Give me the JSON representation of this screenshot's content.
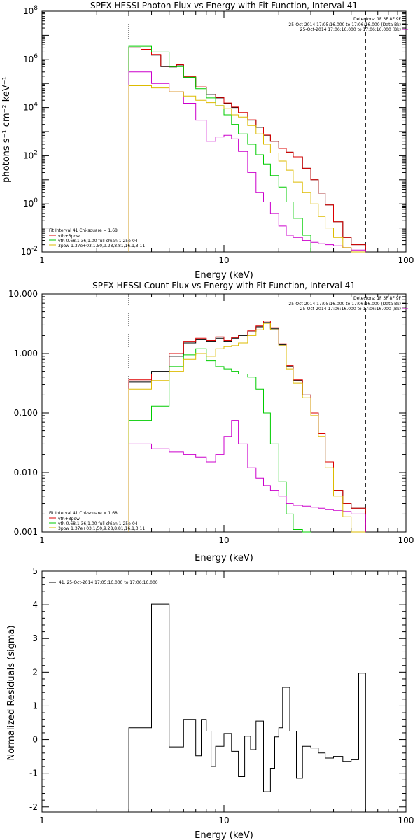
{
  "chart_data": [
    {
      "type": "line",
      "title": "SPEX HESSI Photon Flux vs Energy with Fit Function, Interval 41",
      "xlabel": "Energy (keV)",
      "ylabel": "photons s⁻¹ cm⁻² keV⁻¹",
      "xscale": "log",
      "yscale": "log",
      "xlim": [
        1,
        100
      ],
      "ylim": [
        0.01,
        100000000
      ],
      "xticks": [
        {
          "v": 1,
          "label": "1"
        },
        {
          "v": 10,
          "label": "10"
        },
        {
          "v": 100,
          "label": "100"
        }
      ],
      "yticks": [
        {
          "v": 0.01,
          "base": "10",
          "exp": "-2"
        },
        {
          "v": 1,
          "base": "10",
          "exp": "0"
        },
        {
          "v": 100,
          "base": "10",
          "exp": "2"
        },
        {
          "v": 10000,
          "base": "10",
          "exp": "4"
        },
        {
          "v": 1000000,
          "base": "10",
          "exp": "6"
        },
        {
          "v": 100000000,
          "base": "10",
          "exp": "8"
        }
      ],
      "vlines": [
        {
          "x": 3,
          "style": "dotted"
        },
        {
          "x": 60,
          "style": "dashed"
        }
      ],
      "info_top": [
        "Detectors: 1F 3F 8F 9F",
        "25-Oct-2014 17:05:16.000 to 17:06:16.000 (Data-Bk)",
        "25-Oct-2014 17:06:16.000 to 17:06:16.000 (Bk)"
      ],
      "info_colors": [
        "#000000",
        "#cc00cc"
      ],
      "fit_lines": [
        "Fit Interval 41   Chi-square = 1.68",
        "vth+3pow",
        "vth 0.68,1.36,1.00   full chian 1.25e-04",
        "3pow 1.37e+03,1.50,9.28,8.81,16.1,3.11"
      ],
      "fit_colors": [
        "",
        "#dd0000",
        "#00cc00",
        "#ddbb00"
      ],
      "series": [
        {
          "color": "#000000",
          "edges": [
            3,
            3.5,
            4,
            4.5,
            5,
            5.5,
            6,
            7,
            8,
            9,
            10,
            11,
            12,
            13.5,
            15,
            16.5,
            18,
            20,
            22,
            24,
            27,
            30,
            33,
            36,
            40,
            45,
            50,
            60
          ],
          "values": [
            3000000,
            2500000,
            1500000,
            500000,
            480000,
            580000,
            180000,
            70000,
            35000,
            25000,
            15000,
            10000,
            6000,
            3000,
            1500,
            700,
            400,
            200,
            140,
            90,
            30,
            10,
            2.8,
            0.9,
            0.18,
            0.04,
            0.02
          ]
        },
        {
          "color": "#dd0000",
          "edges": [
            3,
            3.5,
            4,
            4.5,
            5,
            5.5,
            6,
            7,
            8,
            9,
            10,
            11,
            12,
            13.5,
            15,
            16.5,
            18,
            20,
            22,
            24,
            27,
            30,
            33,
            36,
            40,
            45,
            50,
            60
          ],
          "values": [
            3000000,
            2600000,
            1600000,
            520000,
            500000,
            600000,
            190000,
            72000,
            36000,
            26000,
            15500,
            10500,
            6200,
            3100,
            1550,
            720,
            400,
            200,
            140,
            90,
            30,
            10,
            2.8,
            0.9,
            0.18,
            0.04,
            0.02
          ]
        },
        {
          "color": "#00cc00",
          "edges": [
            3,
            4,
            5,
            6,
            7,
            8,
            9,
            10,
            11,
            12,
            13.5,
            15,
            16.5,
            18,
            20,
            22,
            24,
            27,
            30
          ],
          "values": [
            3500000,
            2000000,
            500000,
            180000,
            60000,
            25000,
            12000,
            5000,
            2000,
            800,
            300,
            110,
            45,
            15,
            5,
            1.2,
            0.25,
            0.05
          ]
        },
        {
          "color": "#cc00cc",
          "edges": [
            3,
            4,
            5,
            6,
            7,
            8,
            9,
            10,
            11,
            12,
            13.5,
            15,
            16.5,
            18,
            20,
            22,
            24,
            27,
            30,
            33,
            36,
            40,
            45,
            50,
            60
          ],
          "values": [
            300000,
            100000,
            45000,
            15000,
            3000,
            400,
            600,
            700,
            500,
            150,
            20,
            3,
            1.2,
            0.4,
            0.12,
            0.05,
            0.04,
            0.03,
            0.025,
            0.022,
            0.02,
            0.018,
            0.015,
            0.012
          ]
        },
        {
          "color": "#ddbb00",
          "edges": [
            3,
            4,
            5,
            6,
            7,
            8,
            9,
            10,
            11,
            12,
            13.5,
            15,
            16.5,
            18,
            20,
            22,
            24,
            27,
            30,
            33,
            36,
            40,
            45,
            50,
            60
          ],
          "values": [
            80000,
            65000,
            45000,
            30000,
            20000,
            16000,
            12000,
            9000,
            5000,
            4000,
            1800,
            800,
            300,
            130,
            60,
            25,
            8,
            3,
            1,
            0.3,
            0.1,
            0.04,
            0.015,
            0.01
          ]
        }
      ]
    },
    {
      "type": "line",
      "title": "SPEX HESSI Count Flux vs Energy with Fit Function, Interval 41",
      "xlabel": "Energy (keV)",
      "ylabel": "",
      "xscale": "log",
      "yscale": "log",
      "xlim": [
        1,
        100
      ],
      "ylim": [
        0.001,
        10
      ],
      "xticks": [
        {
          "v": 1,
          "label": "1"
        },
        {
          "v": 10,
          "label": "10"
        },
        {
          "v": 100,
          "label": "100"
        }
      ],
      "yticks": [
        {
          "v": 0.001,
          "label": "0.001"
        },
        {
          "v": 0.01,
          "label": "0.010"
        },
        {
          "v": 0.1,
          "label": "0.100"
        },
        {
          "v": 1,
          "label": "1.000"
        },
        {
          "v": 10,
          "label": "10.000"
        }
      ],
      "vlines": [
        {
          "x": 3,
          "style": "dotted"
        },
        {
          "x": 60,
          "style": "dashed"
        }
      ],
      "info_top": [
        "Detectors: 1F 3F 8F 9F",
        "25-Oct-2014 17:05:16.000 to 17:06:16.000 (Data-Bk)",
        "25-Oct-2014 17:06:16.000 to 17:06:16.000 (Bk)"
      ],
      "info_colors": [
        "#000000",
        "#cc00cc"
      ],
      "fit_lines": [
        "Fit Interval 41   Chi-square = 1.68",
        "vth+3pow",
        "vth 0.68,1.36,1.00   full chian 1.25e-04",
        "3pow 1.37e+03,1.50,9.28,8.81,16.1,3.11"
      ],
      "fit_colors": [
        "",
        "#dd0000",
        "#00cc00",
        "#ddbb00"
      ],
      "series": [
        {
          "color": "#000000",
          "edges": [
            3,
            4,
            5,
            6,
            7,
            8,
            9,
            10,
            11,
            12,
            13.5,
            15,
            16.5,
            18,
            20,
            22,
            24,
            27,
            30,
            33,
            36,
            40,
            45,
            50,
            60
          ],
          "values": [
            0.33,
            0.5,
            0.9,
            1.5,
            1.7,
            1.6,
            1.8,
            1.6,
            1.8,
            2,
            2.3,
            2.8,
            3.3,
            2.6,
            1.4,
            0.6,
            0.35,
            0.2,
            0.1,
            0.045,
            0.015,
            0.005,
            0.003,
            0.0025
          ]
        },
        {
          "color": "#dd0000",
          "edges": [
            3,
            4,
            5,
            6,
            7,
            8,
            9,
            10,
            11,
            12,
            13.5,
            15,
            16.5,
            18,
            20,
            22,
            24,
            27,
            30,
            33,
            36,
            40,
            45,
            50,
            60
          ],
          "values": [
            0.36,
            0.45,
            1,
            1.6,
            1.8,
            1.65,
            1.9,
            1.65,
            1.85,
            2.05,
            2.4,
            2.9,
            3.5,
            2.7,
            1.45,
            0.62,
            0.36,
            0.2,
            0.1,
            0.045,
            0.015,
            0.005,
            0.003,
            0.0025
          ]
        },
        {
          "color": "#00cc00",
          "edges": [
            3,
            4,
            5,
            6,
            7,
            8,
            9,
            10,
            11,
            12,
            13.5,
            15,
            16.5,
            18,
            20,
            22,
            24,
            27,
            30
          ],
          "values": [
            0.075,
            0.13,
            0.6,
            0.95,
            1.2,
            0.75,
            0.6,
            0.55,
            0.5,
            0.45,
            0.4,
            0.25,
            0.1,
            0.03,
            0.007,
            0.002,
            0.0011,
            0.001
          ]
        },
        {
          "color": "#cc00cc",
          "edges": [
            3,
            4,
            5,
            6,
            7,
            8,
            9,
            10,
            11,
            12,
            13.5,
            15,
            16.5,
            18,
            20,
            22,
            24,
            27,
            30,
            33,
            36,
            40,
            45,
            50,
            60
          ],
          "values": [
            0.03,
            0.025,
            0.022,
            0.02,
            0.018,
            0.015,
            0.02,
            0.04,
            0.075,
            0.03,
            0.012,
            0.008,
            0.006,
            0.005,
            0.004,
            0.003,
            0.0028,
            0.0027,
            0.0026,
            0.0025,
            0.0024,
            0.0023,
            0.0022,
            0.002
          ]
        },
        {
          "color": "#ddbb00",
          "edges": [
            3,
            4,
            5,
            6,
            7,
            8,
            9,
            10,
            11,
            12,
            13.5,
            15,
            16.5,
            18,
            20,
            22,
            24,
            27,
            30,
            33,
            36,
            40,
            45,
            50,
            60
          ],
          "values": [
            0.25,
            0.35,
            0.5,
            0.8,
            1,
            0.9,
            1.2,
            1.3,
            1.35,
            1.5,
            2,
            2.5,
            3.2,
            2.5,
            1.35,
            0.55,
            0.32,
            0.18,
            0.09,
            0.04,
            0.012,
            0.004,
            0.0018,
            0.001
          ]
        }
      ]
    },
    {
      "type": "line",
      "title": "",
      "xlabel": "Energy (keV)",
      "ylabel": "Normalized Residuals (sigma)",
      "xscale": "log",
      "yscale": "linear",
      "xlim": [
        1,
        100
      ],
      "ylim": [
        -2.15,
        5
      ],
      "xticks": [
        {
          "v": 1,
          "label": "1"
        },
        {
          "v": 10,
          "label": "10"
        },
        {
          "v": 100,
          "label": "100"
        }
      ],
      "yticks": [
        {
          "v": -2,
          "label": "-2"
        },
        {
          "v": -1,
          "label": "-1"
        },
        {
          "v": 0,
          "label": "0"
        },
        {
          "v": 1,
          "label": "1"
        },
        {
          "v": 2,
          "label": "2"
        },
        {
          "v": 3,
          "label": "3"
        },
        {
          "v": 4,
          "label": "4"
        },
        {
          "v": 5,
          "label": "5"
        }
      ],
      "vlines": [],
      "legend": "41. 25-Oct-2014 17:05:16.000 to 17:06:16.000",
      "series": [
        {
          "color": "#000000",
          "drop_to_min": true,
          "edges": [
            3,
            4,
            5,
            6,
            7,
            7.5,
            8,
            8.5,
            9,
            10,
            11,
            12,
            13,
            14,
            15,
            16.5,
            18,
            19,
            20,
            21,
            23,
            25,
            27,
            30,
            33,
            36,
            40,
            45,
            50,
            55,
            60
          ],
          "values": [
            0.35,
            4.02,
            -0.22,
            0.6,
            -0.48,
            0.6,
            0.25,
            -0.8,
            -0.2,
            0.18,
            -0.35,
            -1.1,
            0.1,
            -0.3,
            0.55,
            -1.55,
            -0.85,
            0.08,
            0.35,
            1.55,
            0.25,
            -1.15,
            -0.2,
            -0.25,
            -0.4,
            -0.55,
            -0.5,
            -0.65,
            -0.6,
            1.97
          ]
        }
      ]
    }
  ]
}
